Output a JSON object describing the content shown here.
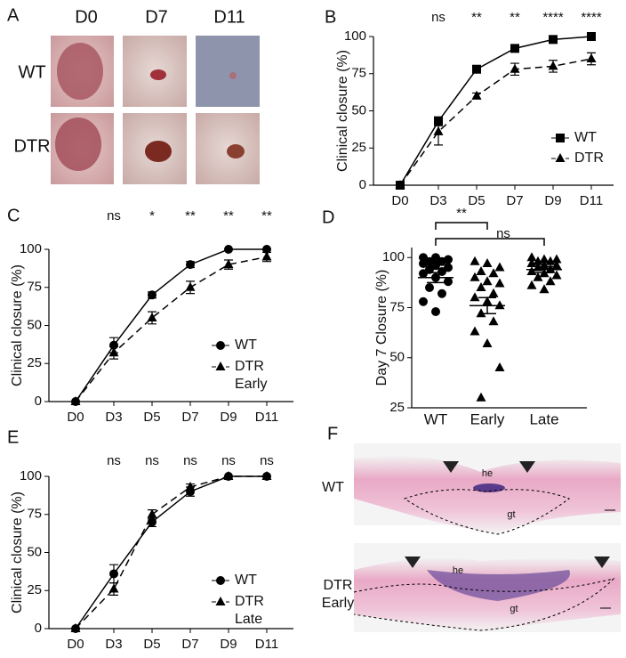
{
  "panel_labels": [
    "A",
    "B",
    "C",
    "D",
    "E",
    "F"
  ],
  "panel_a": {
    "columns": [
      "D0",
      "D7",
      "D11"
    ],
    "rows": [
      "WT",
      "DTR"
    ]
  },
  "panel_f": {
    "rows": [
      "WT",
      "DTR Early"
    ],
    "annotations": [
      "he",
      "gt"
    ]
  },
  "chart_data": [
    {
      "type": "line",
      "ylabel": "Clinical closure (%)",
      "categories": [
        "D0",
        "D3",
        "D5",
        "D7",
        "D9",
        "D11"
      ],
      "significance": [
        null,
        "ns",
        "**",
        "**",
        "****",
        "****"
      ],
      "ylim": [
        0,
        100
      ],
      "yticks": [
        0,
        25,
        50,
        75,
        100
      ],
      "series": [
        {
          "name": "WT",
          "color": "#000000",
          "marker": "square",
          "line_style": "solid",
          "values": [
            0,
            43,
            78,
            92,
            98,
            100
          ],
          "errors": [
            0,
            3,
            2,
            2,
            1,
            0
          ]
        },
        {
          "name": "DTR",
          "color": "#000000",
          "marker": "triangle",
          "line_style": "dashed",
          "values": [
            0,
            36,
            60,
            78,
            80,
            85
          ],
          "errors": [
            0,
            9,
            2,
            4,
            4,
            4
          ]
        }
      ]
    },
    {
      "type": "line",
      "ylabel": "Clinical closure (%)",
      "categories": [
        "D0",
        "D3",
        "D5",
        "D7",
        "D9",
        "D11"
      ],
      "significance": [
        null,
        "ns",
        "*",
        "**",
        "**",
        "**"
      ],
      "ylim": [
        0,
        100
      ],
      "yticks": [
        0,
        25,
        50,
        75,
        100
      ],
      "series": [
        {
          "name": "WT",
          "color": "#000000",
          "marker": "circle",
          "line_style": "solid",
          "values": [
            0,
            37,
            70,
            90,
            100,
            100
          ],
          "errors": [
            0,
            5,
            2,
            2,
            0,
            0
          ]
        },
        {
          "name": "DTR Early",
          "color": "#000000",
          "marker": "triangle",
          "line_style": "dashed",
          "values": [
            0,
            32,
            55,
            75,
            90,
            95
          ],
          "errors": [
            0,
            4,
            4,
            4,
            3,
            3
          ]
        }
      ]
    },
    {
      "type": "dotplot",
      "ylabel": "Day 7 Closure (%)",
      "ylim": [
        25,
        105
      ],
      "yticks": [
        25,
        50,
        75,
        100
      ],
      "groups": [
        {
          "name": "WT",
          "marker": "circle",
          "values": [
            100,
            100,
            99,
            98,
            98,
            97,
            96,
            95,
            94,
            93,
            92,
            90,
            88,
            85,
            82,
            78,
            73
          ],
          "mean": 90,
          "sem": 2.5
        },
        {
          "name": "Early",
          "marker": "triangle",
          "values": [
            98,
            97,
            95,
            93,
            92,
            90,
            88,
            87,
            85,
            82,
            80,
            78,
            76,
            72,
            68,
            63,
            57,
            45,
            30
          ],
          "mean": 76,
          "sem": 4
        },
        {
          "name": "Late",
          "marker": "triangle",
          "values": [
            100,
            99,
            99,
            98,
            98,
            97,
            96,
            96,
            95,
            94,
            93,
            92,
            91,
            90,
            88,
            86,
            84
          ],
          "mean": 94,
          "sem": 1.5
        }
      ],
      "comparisons": [
        {
          "groups": [
            "WT",
            "Early"
          ],
          "label": "**"
        },
        {
          "groups": [
            "WT",
            "Late"
          ],
          "label": "ns"
        }
      ]
    },
    {
      "type": "line",
      "ylabel": "Clinical closure (%)",
      "categories": [
        "D0",
        "D3",
        "D5",
        "D7",
        "D9",
        "D11"
      ],
      "significance": [
        null,
        "ns",
        "ns",
        "ns",
        "ns",
        "ns"
      ],
      "ylim": [
        0,
        100
      ],
      "yticks": [
        0,
        25,
        50,
        75,
        100
      ],
      "series": [
        {
          "name": "WT",
          "color": "#000000",
          "marker": "circle",
          "line_style": "solid",
          "values": [
            0,
            36,
            70,
            90,
            100,
            100
          ],
          "errors": [
            0,
            6,
            3,
            3,
            0,
            0
          ]
        },
        {
          "name": "DTR Late",
          "color": "#000000",
          "marker": "triangle",
          "line_style": "dashed",
          "values": [
            0,
            26,
            75,
            93,
            100,
            100
          ],
          "errors": [
            0,
            4,
            3,
            2,
            0,
            0
          ]
        }
      ]
    }
  ]
}
